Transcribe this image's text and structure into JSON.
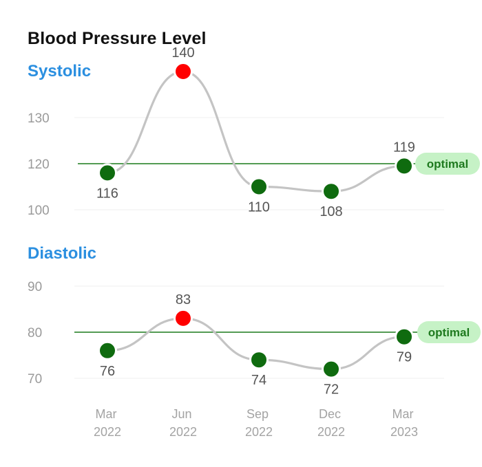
{
  "title": "Blood Pressure Level",
  "colors": {
    "line": "#c4c4c4",
    "normal_point": "#0f6b0f",
    "high_point": "#ff0000",
    "reference_line": "#1a7a1a",
    "reference_badge": "#c6f2c6",
    "reference_text": "#1f7a1f",
    "section_title": "#2b8fe0"
  },
  "x_ticks": [
    {
      "month": "Mar",
      "year": "2022"
    },
    {
      "month": "Jun",
      "year": "2022"
    },
    {
      "month": "Sep",
      "year": "2022"
    },
    {
      "month": "Dec",
      "year": "2022"
    },
    {
      "month": "Mar",
      "year": "2023"
    }
  ],
  "chart_data": [
    {
      "type": "line",
      "title": "Systolic",
      "categories": [
        "Mar 2022",
        "Jun 2022",
        "Sep 2022",
        "Dec 2022",
        "Mar 2023"
      ],
      "values": [
        116,
        140,
        110,
        108,
        119
      ],
      "point_status": [
        "normal",
        "high",
        "normal",
        "normal",
        "normal"
      ],
      "yticks": [
        100,
        120,
        130
      ],
      "reference": {
        "value": 120,
        "label": "optimal"
      },
      "grid": true
    },
    {
      "type": "line",
      "title": "Diastolic",
      "categories": [
        "Mar 2022",
        "Jun 2022",
        "Sep 2022",
        "Dec 2022",
        "Mar 2023"
      ],
      "values": [
        76,
        83,
        74,
        72,
        79
      ],
      "point_status": [
        "normal",
        "high",
        "normal",
        "normal",
        "normal"
      ],
      "yticks": [
        70,
        80,
        90
      ],
      "reference": {
        "value": 80,
        "label": "optimal"
      },
      "grid": true
    }
  ]
}
